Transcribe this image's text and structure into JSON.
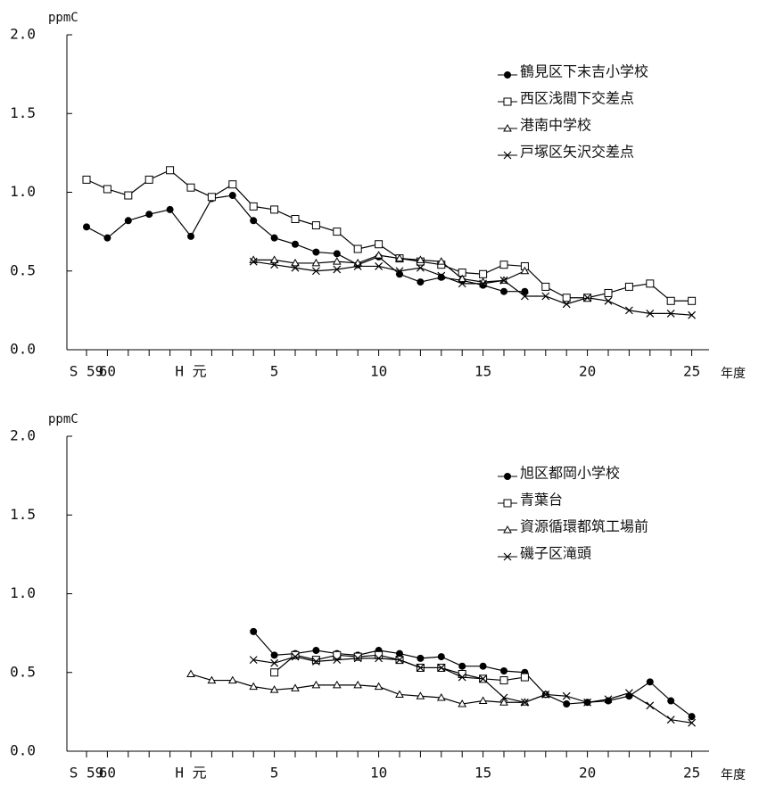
{
  "chart_data": [
    {
      "type": "line",
      "y_label": "ppmC",
      "x_label": "年度",
      "categories": [
        "S 59",
        "60",
        null,
        null,
        null,
        "H 元",
        null,
        null,
        null,
        "5",
        null,
        null,
        null,
        null,
        "10",
        null,
        null,
        null,
        null,
        "15",
        null,
        null,
        null,
        null,
        "20",
        null,
        null,
        null,
        null,
        "25"
      ],
      "ylim": [
        0,
        2
      ],
      "yticks": [
        {
          "value": 0,
          "label": "0.0"
        },
        {
          "value": 0.5,
          "label": "0.5"
        },
        {
          "value": 1,
          "label": "1.0"
        },
        {
          "value": 1.5,
          "label": "1.5"
        },
        {
          "value": 2,
          "label": "2.0"
        }
      ],
      "legend": "upper right",
      "series": [
        {
          "name": "鶴見区下末吉小学校",
          "color": "#000000",
          "marker": "circle",
          "values": [
            0.78,
            0.71,
            0.82,
            0.86,
            0.89,
            0.72,
            0.96,
            0.98,
            0.82,
            0.71,
            0.67,
            0.62,
            0.61,
            0.54,
            0.59,
            0.48,
            0.43,
            0.46,
            0.44,
            0.41,
            0.37,
            0.37,
            null,
            null,
            null,
            null,
            null,
            null,
            null,
            null
          ]
        },
        {
          "name": "西区浅間下交差点",
          "color": "#000000",
          "marker": "square",
          "values": [
            1.08,
            1.02,
            0.98,
            1.08,
            1.14,
            1.03,
            0.97,
            1.05,
            0.91,
            0.89,
            0.83,
            0.79,
            0.75,
            0.64,
            0.67,
            0.58,
            0.56,
            0.54,
            0.49,
            0.48,
            0.54,
            0.53,
            0.4,
            0.33,
            0.33,
            0.36,
            0.4,
            0.42,
            0.31,
            0.31
          ]
        },
        {
          "name": "港南中学校",
          "color": "#000000",
          "marker": "triangle",
          "values": [
            null,
            null,
            null,
            null,
            null,
            null,
            null,
            null,
            0.57,
            0.57,
            0.55,
            0.55,
            0.56,
            0.55,
            0.6,
            0.58,
            0.57,
            0.56,
            0.45,
            0.43,
            0.44,
            0.5,
            null,
            null,
            null,
            null,
            null,
            null,
            null,
            null
          ]
        },
        {
          "name": "戸塚区矢沢交差点",
          "color": "#000000",
          "marker": "x",
          "values": [
            null,
            null,
            null,
            null,
            null,
            null,
            null,
            null,
            0.56,
            0.54,
            0.52,
            0.5,
            0.51,
            0.53,
            0.53,
            0.5,
            0.52,
            0.47,
            0.42,
            0.42,
            0.44,
            0.34,
            0.34,
            0.29,
            0.33,
            0.31,
            0.25,
            0.23,
            0.23,
            0.22
          ]
        }
      ]
    },
    {
      "type": "line",
      "y_label": "ppmC",
      "x_label": "年度",
      "categories": [
        "S 59",
        "60",
        null,
        null,
        null,
        "H 元",
        null,
        null,
        null,
        "5",
        null,
        null,
        null,
        null,
        "10",
        null,
        null,
        null,
        null,
        "15",
        null,
        null,
        null,
        null,
        "20",
        null,
        null,
        null,
        null,
        "25"
      ],
      "ylim": [
        0,
        2
      ],
      "yticks": [
        {
          "value": 0,
          "label": "0.0"
        },
        {
          "value": 0.5,
          "label": "0.5"
        },
        {
          "value": 1,
          "label": "1.0"
        },
        {
          "value": 1.5,
          "label": "1.5"
        },
        {
          "value": 2,
          "label": "2.0"
        }
      ],
      "legend": "upper right",
      "series": [
        {
          "name": "旭区都岡小学校",
          "color": "#000000",
          "marker": "circle",
          "values": [
            null,
            null,
            null,
            null,
            null,
            null,
            null,
            null,
            0.76,
            0.61,
            0.62,
            0.64,
            0.62,
            0.61,
            0.64,
            0.62,
            0.59,
            0.6,
            0.54,
            0.54,
            0.51,
            0.5,
            0.36,
            0.3,
            0.31,
            0.32,
            0.35,
            0.44,
            0.32,
            0.22
          ]
        },
        {
          "name": "青葉台",
          "color": "#000000",
          "marker": "square",
          "values": [
            null,
            null,
            null,
            null,
            null,
            null,
            null,
            null,
            null,
            0.5,
            0.61,
            0.58,
            0.61,
            0.6,
            0.61,
            0.58,
            0.53,
            0.53,
            0.49,
            0.46,
            0.45,
            0.47,
            null,
            null,
            null,
            null,
            null,
            null,
            null,
            null
          ]
        },
        {
          "name": "資源循環都筑工場前",
          "color": "#000000",
          "marker": "triangle",
          "values": [
            null,
            null,
            null,
            null,
            null,
            0.49,
            0.45,
            0.45,
            0.41,
            0.39,
            0.4,
            0.42,
            0.42,
            0.42,
            0.41,
            0.36,
            0.35,
            0.34,
            0.3,
            0.32,
            0.31,
            0.31,
            0.36,
            null,
            null,
            null,
            null,
            null,
            null,
            null
          ]
        },
        {
          "name": "磯子区滝頭",
          "color": "#000000",
          "marker": "x",
          "values": [
            null,
            null,
            null,
            null,
            null,
            null,
            null,
            null,
            0.58,
            0.56,
            0.6,
            0.57,
            0.58,
            0.59,
            0.59,
            0.58,
            0.53,
            0.53,
            0.47,
            0.46,
            0.34,
            0.31,
            0.36,
            0.35,
            0.31,
            0.33,
            0.37,
            0.29,
            0.2,
            0.18
          ]
        }
      ]
    }
  ]
}
